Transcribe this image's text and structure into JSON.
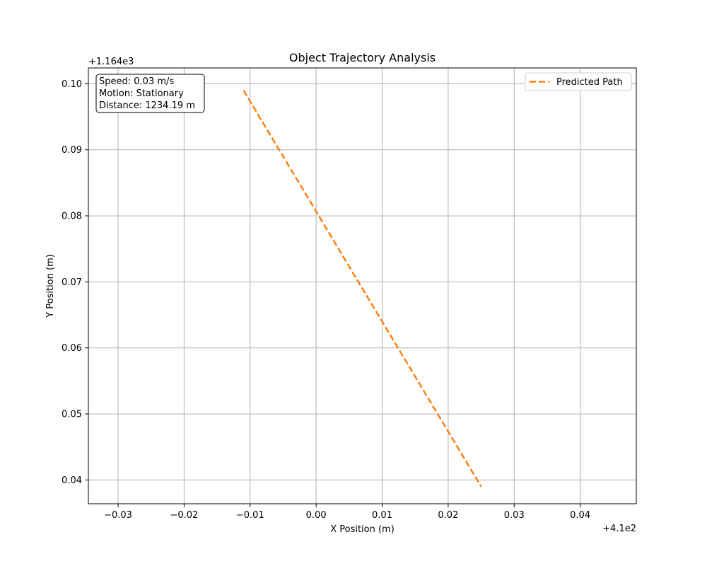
{
  "chart_data": {
    "type": "line",
    "title": "Object Trajectory Analysis",
    "xlabel": "X Position (m)",
    "ylabel": "Y Position (m)",
    "x_offset_label": "+4.1e2",
    "y_offset_label": "+1.164e3",
    "xlim": [
      -0.0345,
      0.0485
    ],
    "ylim": [
      0.0364,
      0.1024
    ],
    "x_ticks": [
      -0.03,
      -0.02,
      -0.01,
      0.0,
      0.01,
      0.02,
      0.03,
      0.04
    ],
    "x_tick_labels": [
      "−0.03",
      "−0.02",
      "−0.01",
      "0.00",
      "0.01",
      "0.02",
      "0.03",
      "0.04"
    ],
    "y_ticks": [
      0.04,
      0.05,
      0.06,
      0.07,
      0.08,
      0.09,
      0.1
    ],
    "y_tick_labels": [
      "0.04",
      "0.05",
      "0.06",
      "0.07",
      "0.08",
      "0.09",
      "0.10"
    ],
    "grid": true,
    "legend_position": "top-right",
    "series": [
      {
        "name": "Predicted Path",
        "color": "#ff7f0e",
        "style": "dashed",
        "x": [
          -0.011,
          0.025
        ],
        "y": [
          0.099,
          0.039
        ]
      }
    ],
    "info_box": {
      "lines": [
        "Speed: 0.03 m/s",
        "Motion: Stationary",
        "Distance: 1234.19 m"
      ],
      "position": "top-left"
    }
  }
}
